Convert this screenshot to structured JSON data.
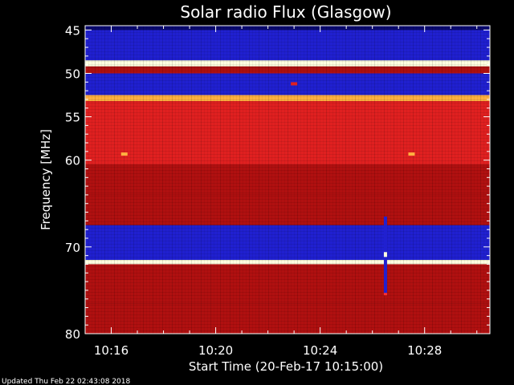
{
  "chart_data": {
    "type": "heatmap",
    "title": "Solar radio Flux (Glasgow)",
    "ylabel": "Frequency [MHz]",
    "xlabel": "Start Time (20-Feb-17 10:15:00)",
    "x_unit": "minutes after 10:15:00",
    "xlim": [
      0,
      15.5
    ],
    "ylim": [
      44.5,
      80
    ],
    "y_inverted": true,
    "y_ticks": [
      {
        "value": 45,
        "label": "45"
      },
      {
        "value": 50,
        "label": "50"
      },
      {
        "value": 55,
        "label": "55"
      },
      {
        "value": 60,
        "label": "60"
      },
      {
        "value": 70,
        "label": "70"
      },
      {
        "value": 80,
        "label": "80"
      }
    ],
    "x_ticks": [
      {
        "value": 1,
        "label": "10:16"
      },
      {
        "value": 5,
        "label": "10:20"
      },
      {
        "value": 9,
        "label": "10:24"
      },
      {
        "value": 13,
        "label": "10:28"
      }
    ],
    "colors": {
      "background": "#000000",
      "axis": "#ffffff",
      "low": "#0a0a6e",
      "mid_blue": "#2020d0",
      "red": "#b01010",
      "bright_red": "#e02020",
      "hot": "#ffb040",
      "hottest": "#ffffe0"
    },
    "frequency_bands": [
      {
        "from": 44.5,
        "to": 45.0,
        "level": "low"
      },
      {
        "from": 45.0,
        "to": 48.5,
        "level": "mid_blue"
      },
      {
        "from": 48.5,
        "to": 49.2,
        "level": "hottest"
      },
      {
        "from": 49.2,
        "to": 50.0,
        "level": "red"
      },
      {
        "from": 50.0,
        "to": 52.5,
        "level": "mid_blue"
      },
      {
        "from": 52.5,
        "to": 53.2,
        "level": "hot"
      },
      {
        "from": 53.2,
        "to": 60.5,
        "level": "bright_red"
      },
      {
        "from": 60.5,
        "to": 64.0,
        "level": "red"
      },
      {
        "from": 64.0,
        "to": 67.5,
        "level": "red"
      },
      {
        "from": 67.5,
        "to": 71.5,
        "level": "mid_blue"
      },
      {
        "from": 71.5,
        "to": 72.0,
        "level": "hottest"
      },
      {
        "from": 72.0,
        "to": 76.5,
        "level": "red"
      },
      {
        "from": 76.5,
        "to": 80.0,
        "level": "red"
      }
    ],
    "features": [
      {
        "type": "spot",
        "time": 1.5,
        "freq": 59.3,
        "level": "hot"
      },
      {
        "type": "spot",
        "time": 12.5,
        "freq": 59.3,
        "level": "hot"
      },
      {
        "type": "spot",
        "time": 8.0,
        "freq": 51.2,
        "level": "bright_red"
      },
      {
        "type": "burst",
        "time": 11.5,
        "freq_from": 66.5,
        "freq_to": 75.5,
        "level": "mid_blue"
      }
    ]
  },
  "footer": {
    "updated_text": "Updated Thu Feb 22 02:43:08 2018"
  }
}
